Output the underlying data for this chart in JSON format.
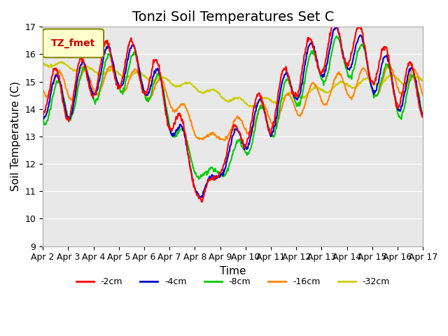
{
  "title": "Tonzi Soil Temperatures Set C",
  "xlabel": "Time",
  "ylabel": "Soil Temperature (C)",
  "ylim": [
    9.0,
    17.0
  ],
  "yticks": [
    9.0,
    10.0,
    11.0,
    12.0,
    13.0,
    14.0,
    15.0,
    16.0,
    17.0
  ],
  "series_colors": {
    "-2cm": "#ff0000",
    "-4cm": "#0000cc",
    "-8cm": "#00cc00",
    "-16cm": "#ff8800",
    "-32cm": "#cccc00"
  },
  "legend_label": "TZ_fmet",
  "legend_box_color": "#ffffcc",
  "legend_box_edge_color": "#888800",
  "legend_text_color": "#cc0000",
  "background_color": "#e8e8e8",
  "fig_background": "#ffffff",
  "title_fontsize": 14,
  "axis_label_fontsize": 11,
  "tick_fontsize": 9,
  "line_width": 1.5,
  "x_tick_labels": [
    "Apr 2",
    "Apr 3",
    "Apr 4",
    "Apr 5",
    "Apr 6",
    "Apr 7",
    "Apr 8",
    "Apr 9",
    "Apr 10",
    "Apr 11",
    "Apr 12",
    "Apr 13",
    "Apr 14",
    "Apr 15",
    "Apr 16",
    "Apr 17"
  ]
}
